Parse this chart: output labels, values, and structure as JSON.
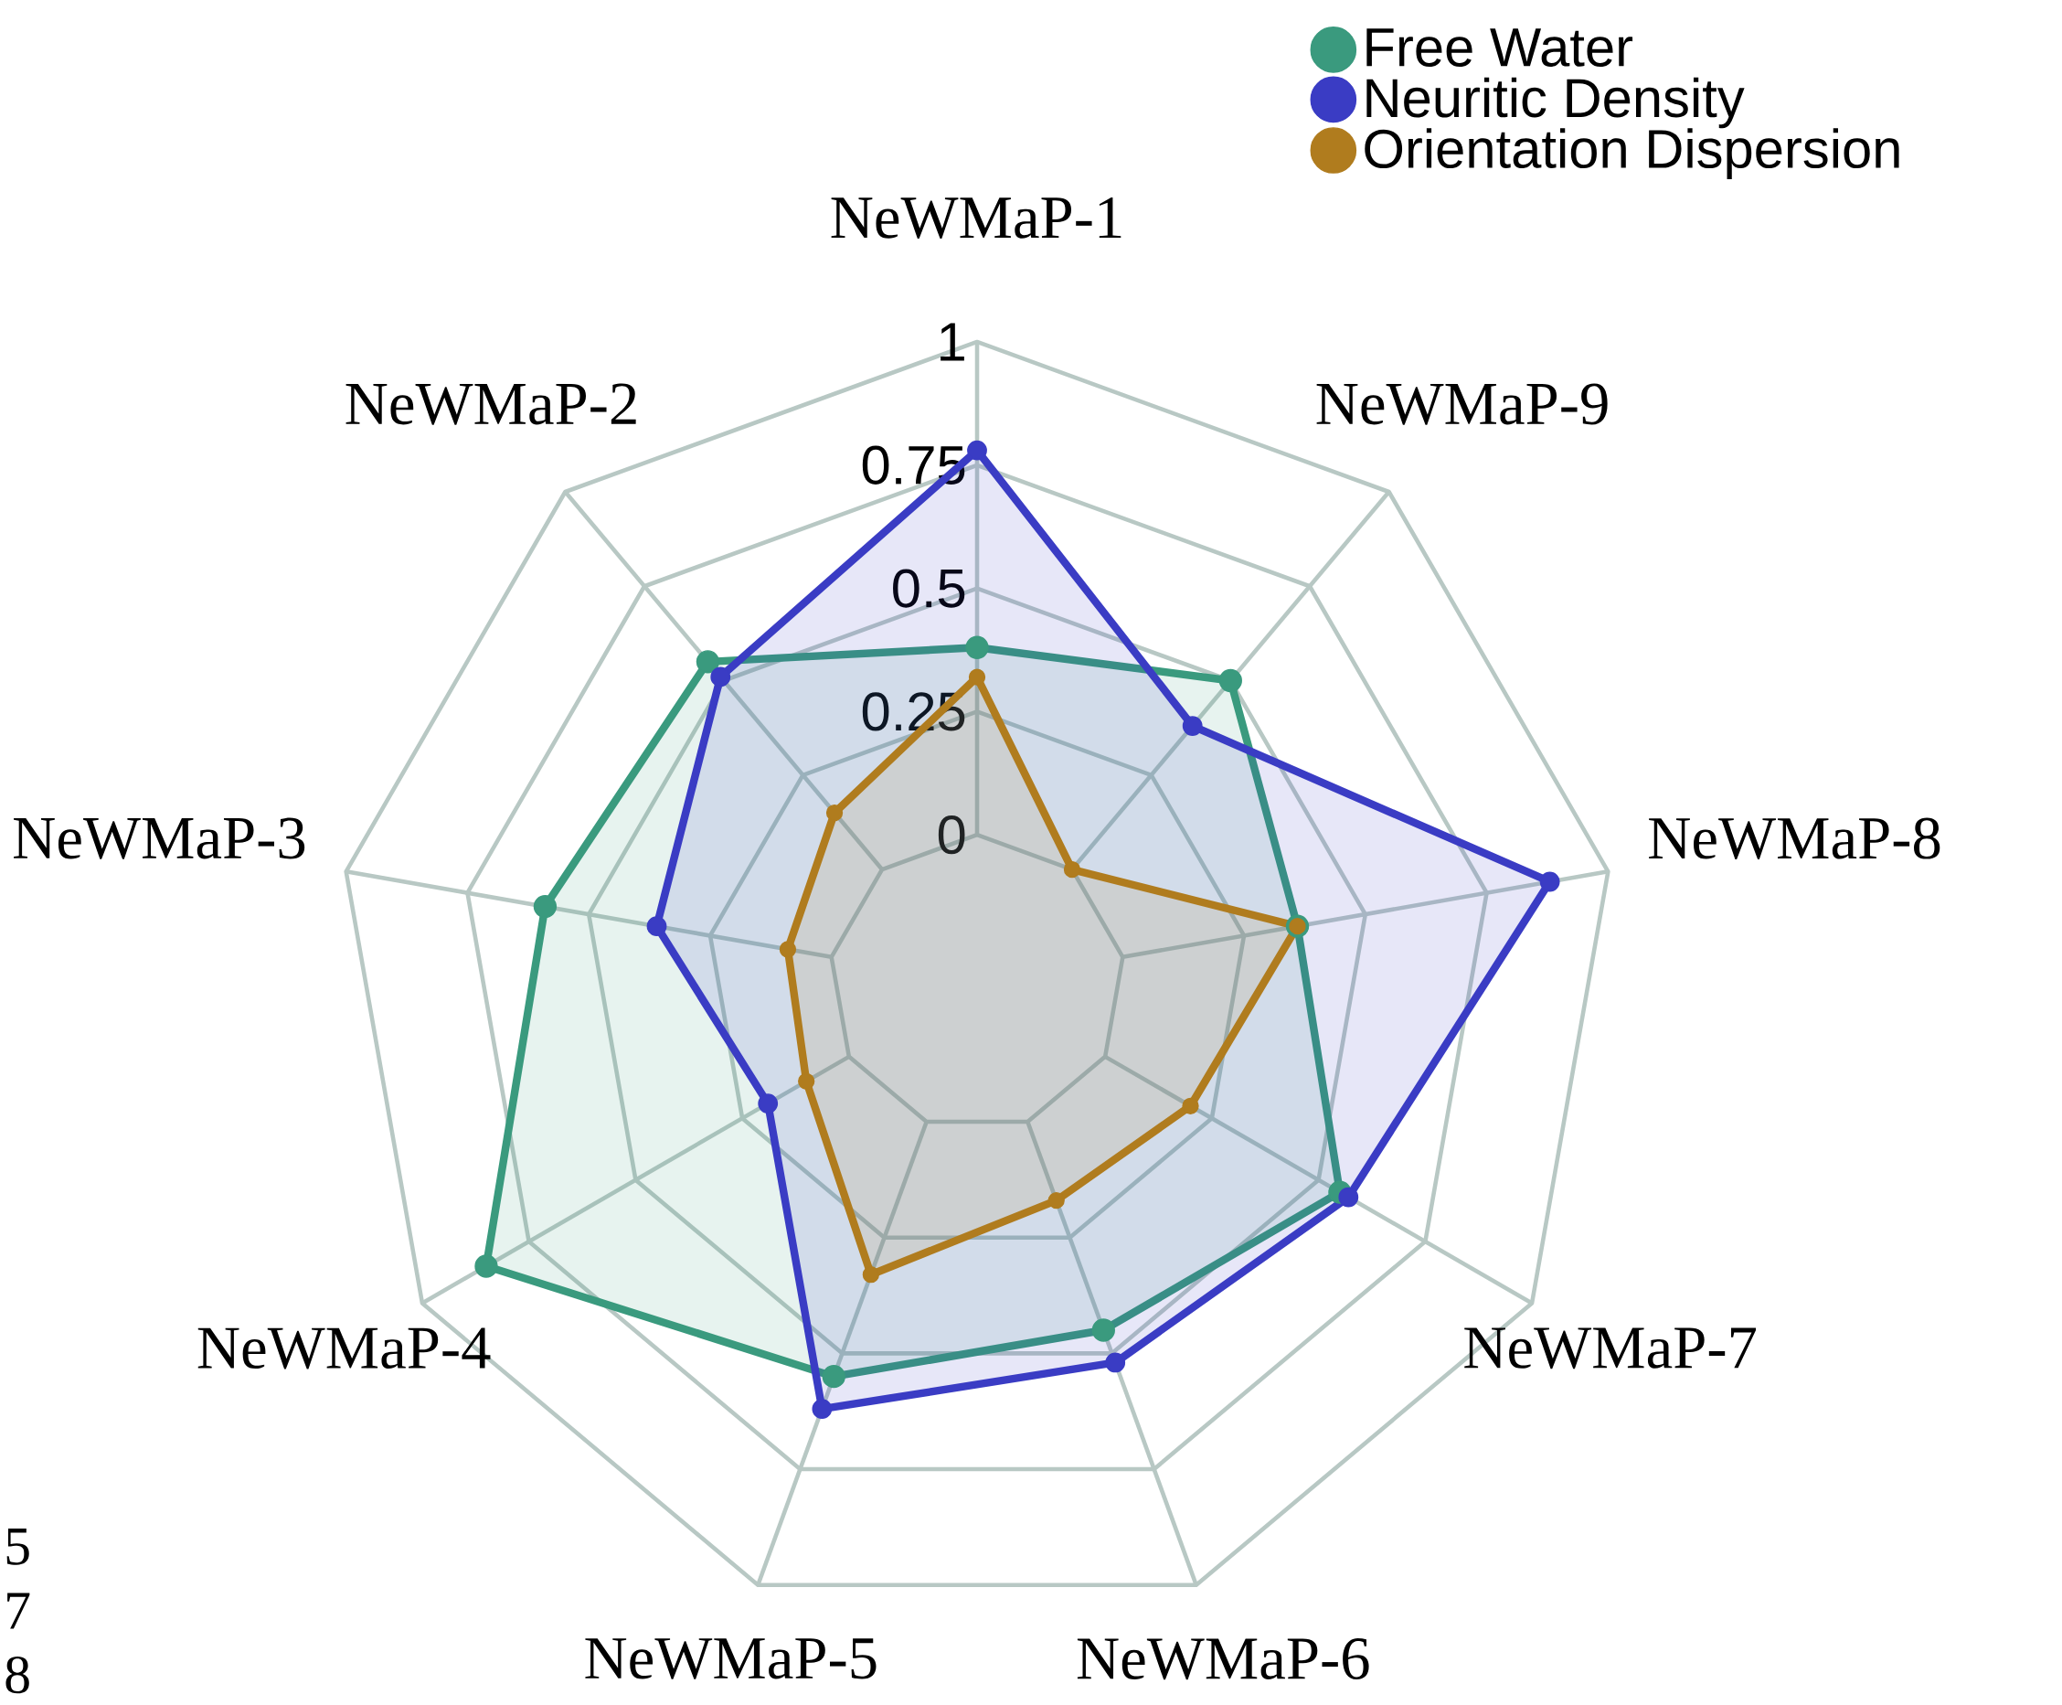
{
  "chart_data": {
    "type": "radar",
    "categories": [
      "NeWMaP-1",
      "NeWMaP-9",
      "NeWMaP-8",
      "NeWMaP-7",
      "NeWMaP-6",
      "NeWMaP-5",
      "NeWMaP-4",
      "NeWMaP-3",
      "NeWMaP-2"
    ],
    "series": [
      {
        "name": "Free Water",
        "color": "#3a9a7e",
        "values": [
          0.38,
          0.5,
          0.36,
          0.55,
          0.45,
          0.55,
          0.85,
          0.59,
          0.55
        ]
      },
      {
        "name": "Neuritic Density",
        "color": "#3a3cc4",
        "values": [
          0.78,
          0.38,
          0.88,
          0.57,
          0.52,
          0.62,
          0.19,
          0.36,
          0.51
        ]
      },
      {
        "name": "Orientation Dispersion",
        "color": "#b07c1e",
        "values": [
          0.32,
          0.0,
          0.36,
          0.2,
          0.17,
          0.33,
          0.1,
          0.09,
          0.15
        ]
      }
    ],
    "ylim": [
      -0.3,
      1
    ],
    "yticks": [
      0,
      0.25,
      0.5,
      0.75,
      1
    ],
    "grid": true,
    "legend": "top right",
    "marker": "circle",
    "line_style": "solid",
    "annotations": [
      "5",
      "7",
      "8"
    ]
  }
}
